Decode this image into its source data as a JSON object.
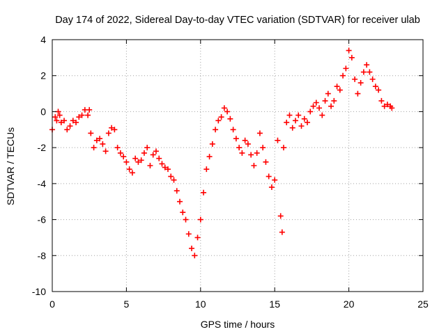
{
  "chart_data": {
    "type": "scatter",
    "title": "Day 174 of 2022, Sidereal Day-to-day VTEC variation (SDTVAR) for receiver ulab",
    "xlabel": "GPS time / hours",
    "ylabel": "SDTVAR / TECUs",
    "xlim": [
      0,
      25
    ],
    "ylim": [
      -10,
      4
    ],
    "xticks": [
      0,
      5,
      10,
      15,
      20,
      25
    ],
    "yticks": [
      -10,
      -8,
      -6,
      -4,
      -2,
      0,
      2,
      4
    ],
    "grid": true,
    "marker": "+",
    "series": [
      {
        "name": "SDTVAR",
        "color": "#ff0000",
        "x": [
          0.0,
          0.2,
          0.3,
          0.4,
          0.5,
          0.6,
          0.8,
          1.0,
          1.2,
          1.4,
          1.6,
          1.8,
          2.0,
          2.2,
          2.4,
          2.5,
          2.6,
          2.8,
          3.0,
          3.2,
          3.4,
          3.6,
          3.8,
          4.0,
          4.2,
          4.4,
          4.6,
          4.8,
          5.0,
          5.2,
          5.4,
          5.6,
          5.8,
          6.0,
          6.2,
          6.4,
          6.6,
          6.8,
          7.0,
          7.2,
          7.4,
          7.6,
          7.8,
          8.0,
          8.2,
          8.4,
          8.6,
          8.8,
          9.0,
          9.2,
          9.4,
          9.6,
          9.8,
          10.0,
          10.2,
          10.4,
          10.6,
          10.8,
          11.0,
          11.2,
          11.4,
          11.6,
          11.8,
          12.0,
          12.2,
          12.4,
          12.6,
          12.8,
          13.0,
          13.2,
          13.4,
          13.6,
          13.8,
          14.0,
          14.2,
          14.4,
          14.6,
          14.8,
          15.0,
          15.2,
          15.4,
          15.5,
          15.6,
          15.8,
          16.0,
          16.2,
          16.4,
          16.6,
          16.8,
          17.0,
          17.2,
          17.4,
          17.6,
          17.8,
          18.0,
          18.2,
          18.4,
          18.6,
          18.8,
          19.0,
          19.2,
          19.4,
          19.6,
          19.8,
          20.0,
          20.2,
          20.4,
          20.6,
          20.8,
          21.0,
          21.2,
          21.4,
          21.6,
          21.8,
          22.0,
          22.2,
          22.4,
          22.6,
          22.8,
          22.9
        ],
        "y": [
          -1.0,
          -0.3,
          -0.5,
          0.0,
          -0.2,
          -0.6,
          -0.5,
          -1.0,
          -0.8,
          -0.5,
          -0.6,
          -0.3,
          -0.2,
          0.1,
          -0.2,
          0.1,
          -1.2,
          -2.0,
          -1.6,
          -1.5,
          -1.8,
          -2.2,
          -1.2,
          -0.9,
          -1.0,
          -2.0,
          -2.3,
          -2.5,
          -2.8,
          -3.2,
          -3.4,
          -2.6,
          -2.8,
          -2.7,
          -2.3,
          -2.0,
          -3.0,
          -2.4,
          -2.2,
          -2.6,
          -2.9,
          -3.1,
          -3.2,
          -3.6,
          -3.8,
          -4.4,
          -5.0,
          -5.6,
          -6.0,
          -6.8,
          -7.6,
          -8.0,
          -7.0,
          -6.0,
          -4.5,
          -3.2,
          -2.5,
          -1.8,
          -1.0,
          -0.5,
          -0.3,
          0.2,
          0.0,
          -0.4,
          -1.0,
          -1.5,
          -2.0,
          -2.3,
          -1.6,
          -1.8,
          -2.4,
          -3.0,
          -2.3,
          -1.2,
          -2.0,
          -2.8,
          -3.6,
          -4.2,
          -3.8,
          -1.6,
          -5.8,
          -6.7,
          -2.0,
          -0.6,
          -0.2,
          -0.9,
          -0.5,
          -0.2,
          -0.8,
          -0.4,
          -0.6,
          0.0,
          0.3,
          0.5,
          0.2,
          -0.2,
          0.6,
          1.0,
          0.3,
          0.6,
          1.4,
          1.2,
          2.0,
          2.4,
          3.4,
          3.0,
          1.8,
          1.0,
          1.6,
          2.2,
          2.6,
          2.2,
          1.8,
          1.4,
          1.2,
          0.6,
          0.3,
          0.4,
          0.3,
          0.2
        ]
      }
    ]
  }
}
